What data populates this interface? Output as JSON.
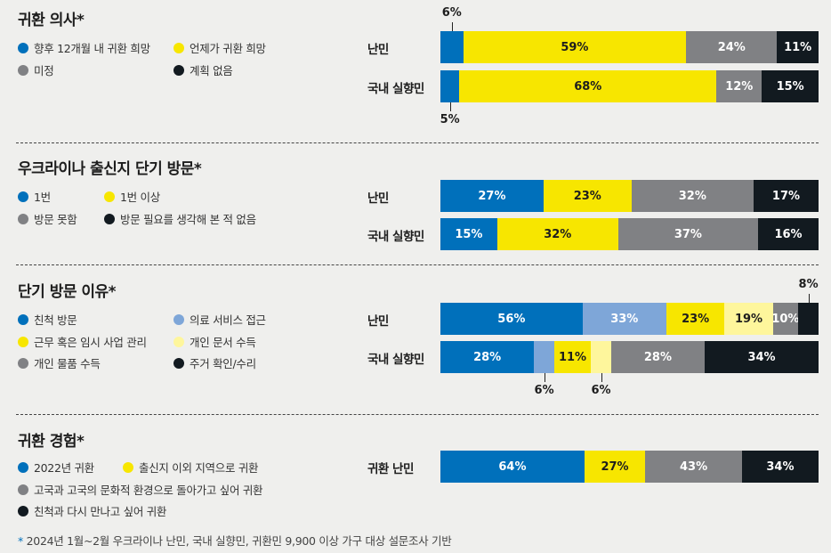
{
  "colors": {
    "blue": "#0070bb",
    "lightblue": "#7ea6d8",
    "yellow": "#f7e600",
    "lightyellow": "#fef69c",
    "gray": "#808184",
    "black": "#121a20"
  },
  "chart_data": [
    {
      "type": "bar",
      "stacked": true,
      "title": "귀환 의사*",
      "legend": [
        {
          "name": "향후 12개월 내 귀환 희망",
          "color": "blue"
        },
        {
          "name": "언제가 귀환 희망",
          "color": "yellow"
        },
        {
          "name": "미정",
          "color": "gray"
        },
        {
          "name": "계획 없음",
          "color": "black"
        }
      ],
      "categories": [
        "난민",
        "국내 실향민"
      ],
      "rows": [
        {
          "label": "난민",
          "values": [
            {
              "v": 6,
              "t": "6%",
              "c": "blue"
            },
            {
              "v": 59,
              "t": "59%",
              "c": "yellow"
            },
            {
              "v": 24,
              "t": "24%",
              "c": "gray"
            },
            {
              "v": 11,
              "t": "11%",
              "c": "black"
            }
          ]
        },
        {
          "label": "국내 실향민",
          "values": [
            {
              "v": 5,
              "t": "5%",
              "c": "blue"
            },
            {
              "v": 68,
              "t": "68%",
              "c": "yellow"
            },
            {
              "v": 12,
              "t": "12%",
              "c": "gray"
            },
            {
              "v": 15,
              "t": "15%",
              "c": "black"
            }
          ]
        }
      ]
    },
    {
      "type": "bar",
      "stacked": true,
      "title": "우크라이나 출신지 단기 방문*",
      "legend": [
        {
          "name": "1번",
          "color": "blue"
        },
        {
          "name": "1번 이상",
          "color": "yellow"
        },
        {
          "name": "방문 못함",
          "color": "gray"
        },
        {
          "name": "방문 필요를 생각해 본 적 없음",
          "color": "black"
        }
      ],
      "categories": [
        "난민",
        "국내 실향민"
      ],
      "rows": [
        {
          "label": "난민",
          "values": [
            {
              "v": 27,
              "t": "27%",
              "c": "blue"
            },
            {
              "v": 23,
              "t": "23%",
              "c": "yellow"
            },
            {
              "v": 32,
              "t": "32%",
              "c": "gray"
            },
            {
              "v": 17,
              "t": "17%",
              "c": "black"
            }
          ]
        },
        {
          "label": "국내 실향민",
          "values": [
            {
              "v": 15,
              "t": "15%",
              "c": "blue"
            },
            {
              "v": 32,
              "t": "32%",
              "c": "yellow"
            },
            {
              "v": 37,
              "t": "37%",
              "c": "gray"
            },
            {
              "v": 16,
              "t": "16%",
              "c": "black"
            }
          ]
        }
      ]
    },
    {
      "type": "bar",
      "stacked": true,
      "title": "단기 방문 이유*",
      "legend": [
        {
          "name": "친척 방문",
          "color": "blue"
        },
        {
          "name": "의료 서비스 접근",
          "color": "lightblue"
        },
        {
          "name": "근무 혹은 임시 사업 관리",
          "color": "yellow"
        },
        {
          "name": "개인 문서 수득",
          "color": "lightyellow"
        },
        {
          "name": "개인 물품 수득",
          "color": "gray"
        },
        {
          "name": "주거 확인/수리",
          "color": "black"
        }
      ],
      "categories": [
        "난민",
        "국내 실향민"
      ],
      "rows": [
        {
          "label": "난민",
          "values": [
            {
              "v": 56,
              "t": "56%",
              "c": "blue"
            },
            {
              "v": 33,
              "t": "33%",
              "c": "lightblue"
            },
            {
              "v": 23,
              "t": "23%",
              "c": "yellow"
            },
            {
              "v": 19,
              "t": "19%",
              "c": "lightyellow"
            },
            {
              "v": 10,
              "t": "10%",
              "c": "gray"
            },
            {
              "v": 8,
              "t": "8%",
              "c": "black"
            }
          ]
        },
        {
          "label": "국내 실향민",
          "values": [
            {
              "v": 28,
              "t": "28%",
              "c": "blue"
            },
            {
              "v": 6,
              "t": "6%",
              "c": "lightblue"
            },
            {
              "v": 11,
              "t": "11%",
              "c": "yellow"
            },
            {
              "v": 6,
              "t": "6%",
              "c": "lightyellow"
            },
            {
              "v": 28,
              "t": "28%",
              "c": "gray"
            },
            {
              "v": 34,
              "t": "34%",
              "c": "black"
            }
          ]
        }
      ]
    },
    {
      "type": "bar",
      "stacked": true,
      "title": "귀환 경험*",
      "legend": [
        {
          "name": "2022년 귀환",
          "color": "blue"
        },
        {
          "name": "출신지 이외 지역으로 귀환",
          "color": "yellow"
        },
        {
          "name": "고국과 고국의 문화적 환경으로 돌아가고 싶어 귀환",
          "color": "gray"
        },
        {
          "name": "친척과 다시 만나고 싶어 귀환",
          "color": "black"
        }
      ],
      "categories": [
        "귀환 난민"
      ],
      "rows": [
        {
          "label": "귀환 난민",
          "values": [
            {
              "v": 64,
              "t": "64%",
              "c": "blue"
            },
            {
              "v": 27,
              "t": "27%",
              "c": "yellow"
            },
            {
              "v": 43,
              "t": "43%",
              "c": "gray"
            },
            {
              "v": 34,
              "t": "34%",
              "c": "black"
            }
          ]
        }
      ]
    }
  ],
  "footnote": {
    "star": "*",
    "text": "2024년 1월~2월 우크라이나 난민, 국내 실향민, 귀환민 9,900 이상 가구 대상 설문조사 기반"
  }
}
